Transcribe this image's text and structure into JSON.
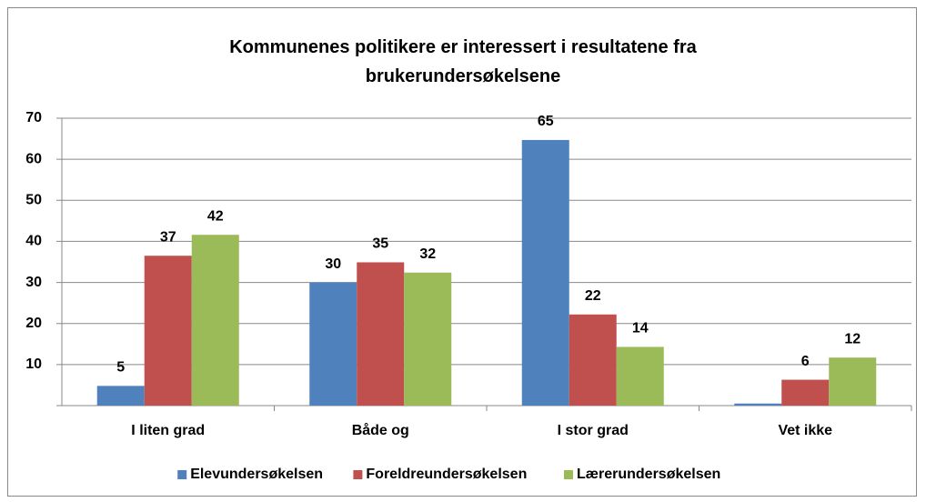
{
  "chart_data": {
    "type": "bar",
    "title": "Kommunenes politikere er interessert i resultatene fra brukerundersøkelsene",
    "categories": [
      "I liten grad",
      "Både og",
      "I stor grad",
      "Vet ikke"
    ],
    "series": [
      {
        "name": "Elevundersøkelsen",
        "color": "#4f81bd",
        "values": [
          4.8,
          30,
          64.7,
          0.5
        ],
        "value_labels": [
          "5",
          "30",
          "65",
          null
        ]
      },
      {
        "name": "Foreldreundersøkelsen",
        "color": "#c0504d",
        "values": [
          36.5,
          34.9,
          22.2,
          6.3
        ],
        "value_labels": [
          "37",
          "35",
          "22",
          "6"
        ]
      },
      {
        "name": "Lærerundersøkelsen",
        "color": "#9bbb59",
        "values": [
          41.6,
          32.4,
          14.3,
          11.7
        ],
        "value_labels": [
          "42",
          "32",
          "14",
          "12"
        ]
      }
    ],
    "ylim": [
      0,
      70
    ],
    "yticks": [
      10,
      20,
      30,
      40,
      50,
      60,
      70
    ],
    "grid": true,
    "legend": "bottom"
  }
}
